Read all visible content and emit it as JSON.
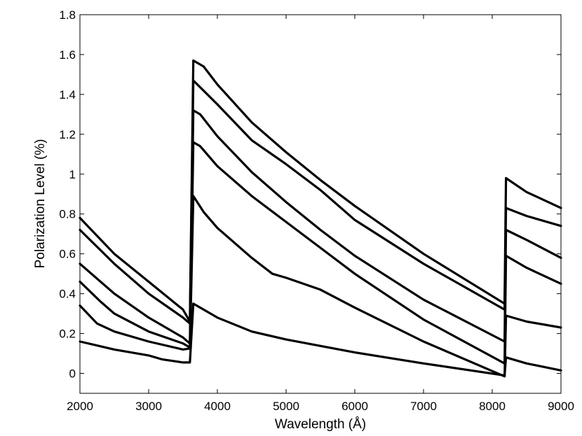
{
  "chart_data": {
    "type": "line",
    "xlabel": "Wavelength (Å)",
    "ylabel": "Polarization Level (%)",
    "xlim": [
      2000,
      9000
    ],
    "ylim": [
      -0.1,
      1.8
    ],
    "xticks": [
      2000,
      3000,
      4000,
      5000,
      6000,
      7000,
      8000,
      9000
    ],
    "yticks": [
      0,
      0.2,
      0.4,
      0.6,
      0.8,
      1,
      1.2,
      1.4,
      1.6,
      1.8
    ],
    "ytick_labels": [
      "0",
      "0.2",
      "0.4",
      "0.6",
      "0.8",
      "1",
      "1.2",
      "1.4",
      "1.6",
      "1.8"
    ],
    "grid": false,
    "legend": "none",
    "series": [
      {
        "points": [
          [
            2000,
            0.16
          ],
          [
            2500,
            0.12
          ],
          [
            3000,
            0.09
          ],
          [
            3200,
            0.07
          ],
          [
            3500,
            0.055
          ],
          [
            3600,
            0.055
          ],
          [
            3650,
            0.35
          ],
          [
            3800,
            0.32
          ],
          [
            4000,
            0.28
          ],
          [
            4500,
            0.21
          ],
          [
            5000,
            0.17
          ],
          [
            6000,
            0.105
          ],
          [
            7000,
            0.05
          ],
          [
            8180,
            -0.01
          ],
          [
            8200,
            0.08
          ],
          [
            8500,
            0.05
          ],
          [
            9000,
            0.015
          ]
        ]
      },
      {
        "points": [
          [
            2000,
            0.34
          ],
          [
            2250,
            0.25
          ],
          [
            2500,
            0.21
          ],
          [
            3000,
            0.16
          ],
          [
            3500,
            0.12
          ],
          [
            3600,
            0.125
          ],
          [
            3650,
            0.89
          ],
          [
            3800,
            0.81
          ],
          [
            4000,
            0.73
          ],
          [
            4500,
            0.58
          ],
          [
            4800,
            0.5
          ],
          [
            5000,
            0.48
          ],
          [
            5500,
            0.42
          ],
          [
            6000,
            0.33
          ],
          [
            7000,
            0.16
          ],
          [
            8180,
            -0.015
          ],
          [
            8200,
            0.29
          ],
          [
            8500,
            0.26
          ],
          [
            9000,
            0.23
          ]
        ]
      },
      {
        "points": [
          [
            2000,
            0.46
          ],
          [
            2300,
            0.36
          ],
          [
            2500,
            0.3
          ],
          [
            3000,
            0.21
          ],
          [
            3500,
            0.15
          ],
          [
            3600,
            0.13
          ],
          [
            3650,
            1.16
          ],
          [
            3750,
            1.14
          ],
          [
            4000,
            1.04
          ],
          [
            4500,
            0.89
          ],
          [
            5000,
            0.76
          ],
          [
            5500,
            0.63
          ],
          [
            6000,
            0.5
          ],
          [
            7000,
            0.27
          ],
          [
            8180,
            0.05
          ],
          [
            8200,
            0.59
          ],
          [
            8500,
            0.53
          ],
          [
            9000,
            0.45
          ]
        ]
      },
      {
        "points": [
          [
            2000,
            0.55
          ],
          [
            2500,
            0.4
          ],
          [
            3000,
            0.28
          ],
          [
            3300,
            0.22
          ],
          [
            3500,
            0.18
          ],
          [
            3600,
            0.15
          ],
          [
            3650,
            1.32
          ],
          [
            3750,
            1.3
          ],
          [
            4000,
            1.19
          ],
          [
            4500,
            1.01
          ],
          [
            5000,
            0.86
          ],
          [
            5500,
            0.72
          ],
          [
            6000,
            0.59
          ],
          [
            7000,
            0.37
          ],
          [
            8180,
            0.16
          ],
          [
            8200,
            0.72
          ],
          [
            8500,
            0.67
          ],
          [
            9000,
            0.58
          ]
        ]
      },
      {
        "points": [
          [
            2000,
            0.72
          ],
          [
            2500,
            0.55
          ],
          [
            3000,
            0.4
          ],
          [
            3500,
            0.28
          ],
          [
            3600,
            0.25
          ],
          [
            3650,
            1.47
          ],
          [
            4000,
            1.35
          ],
          [
            4500,
            1.17
          ],
          [
            5000,
            1.05
          ],
          [
            5500,
            0.92
          ],
          [
            6000,
            0.77
          ],
          [
            7000,
            0.55
          ],
          [
            8180,
            0.32
          ],
          [
            8200,
            0.83
          ],
          [
            8500,
            0.79
          ],
          [
            9000,
            0.74
          ]
        ]
      },
      {
        "points": [
          [
            2000,
            0.78
          ],
          [
            2500,
            0.6
          ],
          [
            3000,
            0.46
          ],
          [
            3500,
            0.32
          ],
          [
            3600,
            0.26
          ],
          [
            3650,
            1.57
          ],
          [
            3800,
            1.54
          ],
          [
            4000,
            1.45
          ],
          [
            4500,
            1.26
          ],
          [
            5000,
            1.11
          ],
          [
            5500,
            0.97
          ],
          [
            6000,
            0.84
          ],
          [
            7000,
            0.6
          ],
          [
            8180,
            0.35
          ],
          [
            8200,
            0.98
          ],
          [
            8500,
            0.91
          ],
          [
            9000,
            0.83
          ]
        ]
      }
    ]
  }
}
